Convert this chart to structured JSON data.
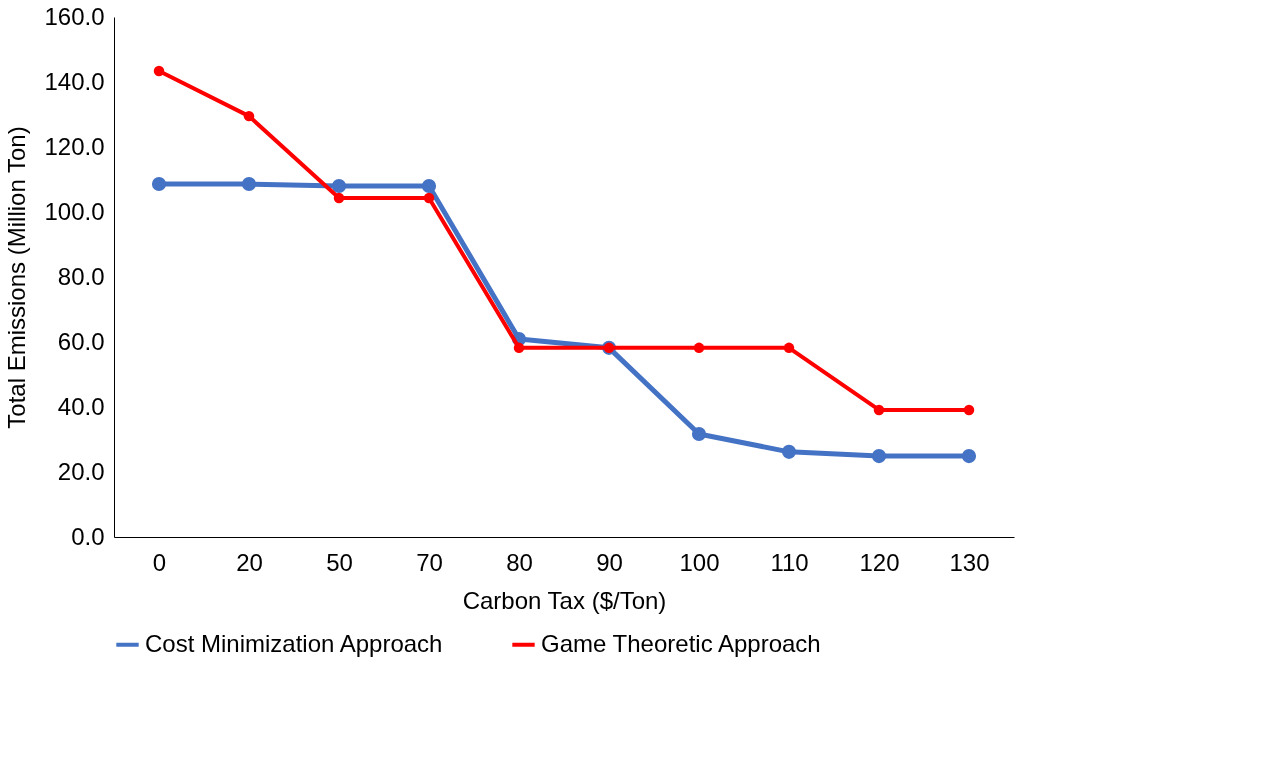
{
  "chart_data": {
    "type": "line",
    "xlabel": "Carbon Tax ($/Ton)",
    "ylabel": "Total Emissions (Million Ton)",
    "categories": [
      "0",
      "20",
      "50",
      "70",
      "80",
      "90",
      "100",
      "110",
      "120",
      "130"
    ],
    "series": [
      {
        "name": "Cost Minimization Approach",
        "color": "#4472c4",
        "values": [
          108.6,
          108.6,
          108.0,
          108.0,
          60.9,
          58.2,
          31.7,
          26.2,
          24.9,
          24.9
        ]
      },
      {
        "name": "Game Theoretic Approach",
        "color": "#ff0000",
        "values": [
          143.4,
          129.5,
          104.3,
          104.3,
          58.2,
          58.2,
          58.2,
          58.2,
          39.1,
          39.1
        ]
      }
    ],
    "ylim": [
      0,
      160
    ],
    "yticks": [
      {
        "value": 0,
        "label": "0.0"
      },
      {
        "value": 20,
        "label": "20.0"
      },
      {
        "value": 40,
        "label": "40.0"
      },
      {
        "value": 60,
        "label": "60.0"
      },
      {
        "value": 80,
        "label": "80.0"
      },
      {
        "value": 100,
        "label": "100.0"
      },
      {
        "value": 120,
        "label": "120.0"
      },
      {
        "value": 140,
        "label": "140.0"
      },
      {
        "value": 160,
        "label": "160.0"
      }
    ],
    "grid": false,
    "legend": "bottom",
    "marker": "circle",
    "line_style": "solid"
  }
}
